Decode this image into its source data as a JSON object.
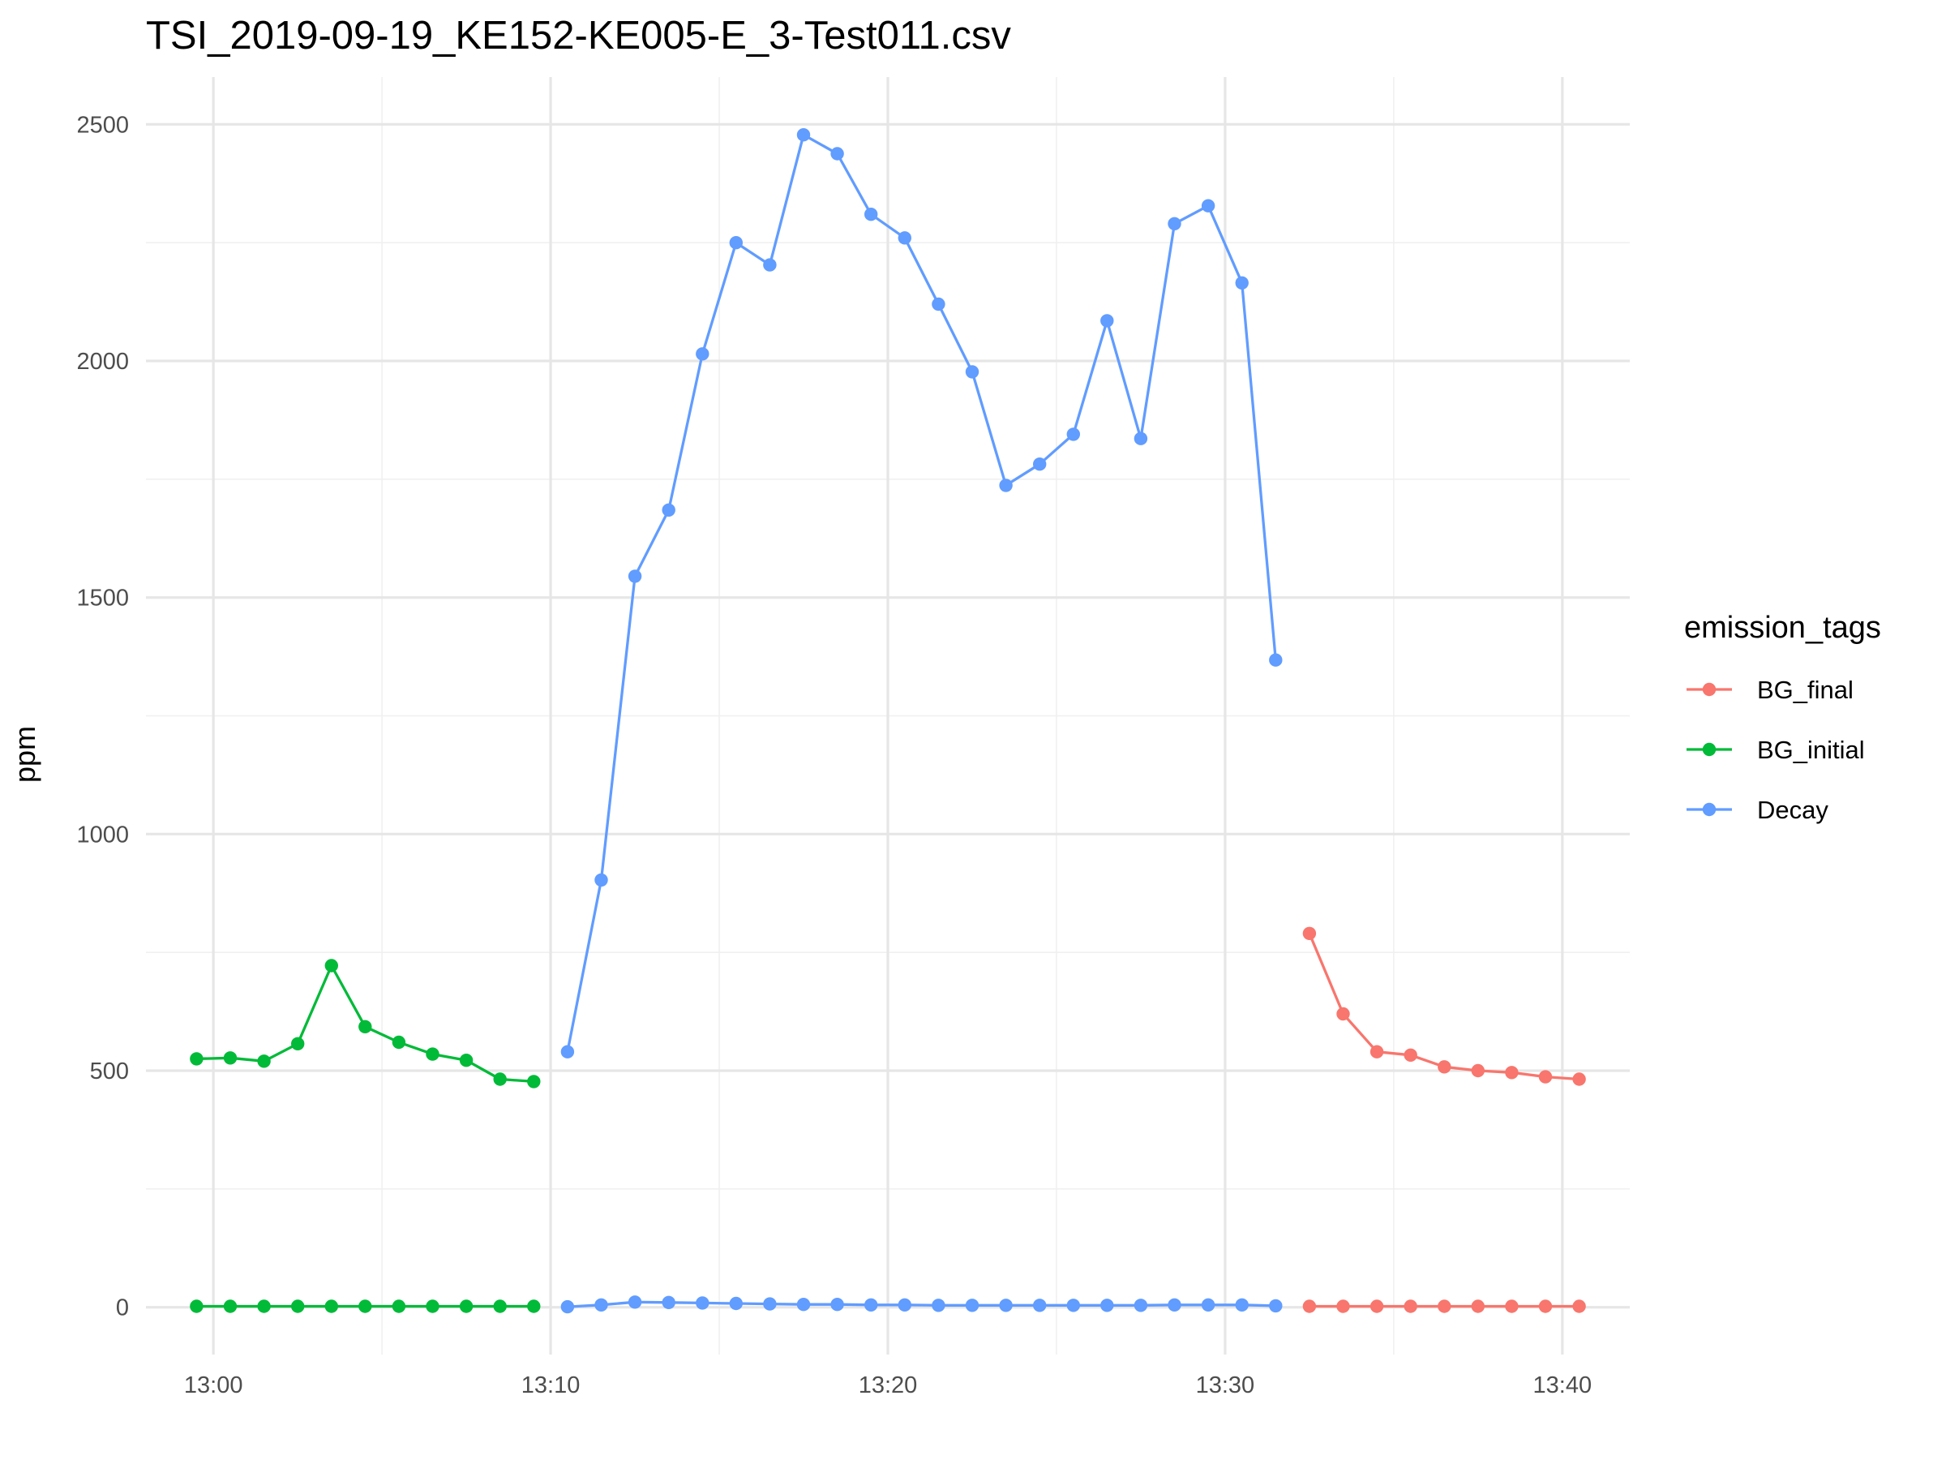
{
  "chart_data": {
    "type": "line",
    "title": "TSI_2019-09-19_KE152-KE005-E_3-Test011.csv",
    "xlabel": "",
    "ylabel": "ppm",
    "xlim": [
      "12:58",
      "13:42"
    ],
    "ylim": [
      -100,
      2600
    ],
    "x_ticks": [
      "13:00",
      "13:10",
      "13:20",
      "13:30",
      "13:40"
    ],
    "y_ticks": [
      0,
      500,
      1000,
      1500,
      2000,
      2500
    ],
    "grid": true,
    "legend": {
      "title": "emission_tags",
      "position": "right"
    },
    "series": [
      {
        "name": "BG_final",
        "color": "#F8766D",
        "segments": [
          {
            "x": [
              "13:32:30",
              "13:33:30",
              "13:34:30",
              "13:35:30",
              "13:36:30",
              "13:37:30",
              "13:38:30",
              "13:39:30",
              "13:40:30"
            ],
            "y": [
              790,
              620,
              540,
              533,
              508,
              500,
              496,
              487,
              482
            ]
          },
          {
            "x": [
              "13:32:30",
              "13:33:30",
              "13:34:30",
              "13:35:30",
              "13:36:30",
              "13:37:30",
              "13:38:30",
              "13:39:30",
              "13:40:30"
            ],
            "y": [
              2,
              2,
              2,
              2,
              2,
              2,
              2,
              2,
              2
            ]
          }
        ]
      },
      {
        "name": "BG_initial",
        "color": "#00BA38",
        "segments": [
          {
            "x": [
              "12:59:30",
              "13:00:30",
              "13:01:30",
              "13:02:30",
              "13:03:30",
              "13:04:30",
              "13:05:30",
              "13:06:30",
              "13:07:30",
              "13:08:30",
              "13:09:30"
            ],
            "y": [
              525,
              527,
              520,
              557,
              722,
              593,
              560,
              535,
              522,
              482,
              477
            ]
          },
          {
            "x": [
              "12:59:30",
              "13:00:30",
              "13:01:30",
              "13:02:30",
              "13:03:30",
              "13:04:30",
              "13:05:30",
              "13:06:30",
              "13:07:30",
              "13:08:30",
              "13:09:30"
            ],
            "y": [
              2,
              2,
              2,
              2,
              2,
              2,
              2,
              2,
              2,
              2,
              2
            ]
          }
        ]
      },
      {
        "name": "Decay",
        "color": "#619CFF",
        "segments": [
          {
            "x": [
              "13:10:30",
              "13:11:30",
              "13:12:30",
              "13:13:30",
              "13:14:30",
              "13:15:30",
              "13:16:30",
              "13:17:30",
              "13:18:30",
              "13:19:30",
              "13:20:30",
              "13:21:30",
              "13:22:30",
              "13:23:30",
              "13:24:30",
              "13:25:30",
              "13:26:30",
              "13:27:30",
              "13:28:30",
              "13:29:30",
              "13:30:30",
              "13:31:30"
            ],
            "y": [
              540,
              903,
              1545,
              1685,
              2015,
              2250,
              2203,
              2478,
              2438,
              2310,
              2260,
              2120,
              1977,
              1737,
              1782,
              1845,
              2085,
              1836,
              2290,
              2328,
              2165,
              1368
            ]
          },
          {
            "x": [
              "13:10:30",
              "13:11:30",
              "13:12:30",
              "13:13:30",
              "13:14:30",
              "13:15:30",
              "13:16:30",
              "13:17:30",
              "13:18:30",
              "13:19:30",
              "13:20:30",
              "13:21:30",
              "13:22:30",
              "13:23:30",
              "13:24:30",
              "13:25:30",
              "13:26:30",
              "13:27:30",
              "13:28:30",
              "13:29:30",
              "13:30:30",
              "13:31:30"
            ],
            "y": [
              1,
              5,
              11,
              10,
              9,
              8,
              7,
              6,
              6,
              5,
              5,
              4,
              4,
              4,
              4,
              4,
              4,
              4,
              5,
              5,
              5,
              3
            ]
          }
        ]
      }
    ]
  }
}
